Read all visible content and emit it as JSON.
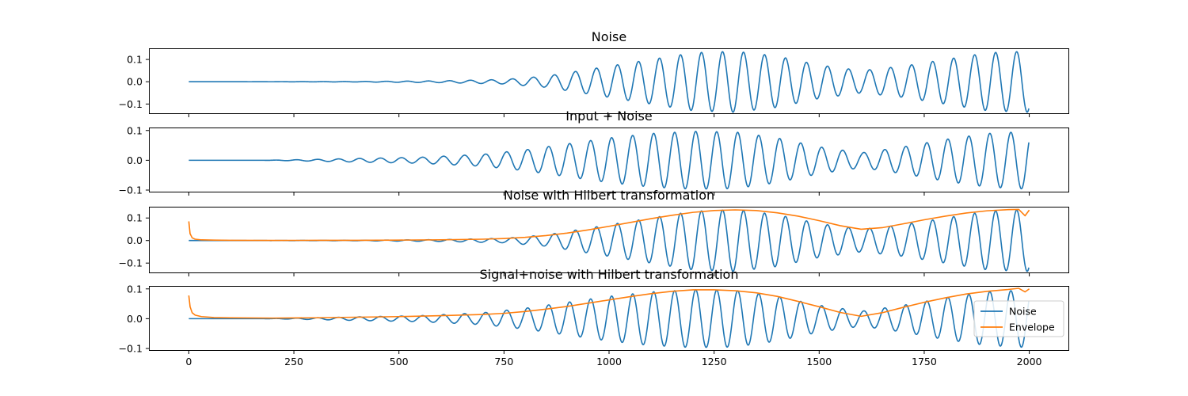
{
  "chart_data": {
    "type": "line",
    "x_domain": [
      -95,
      2095
    ],
    "x_ticks": [
      0,
      250,
      500,
      750,
      1000,
      1250,
      1500,
      1750,
      2000
    ],
    "x_tick_labels": [
      "0",
      "250",
      "500",
      "750",
      "1000",
      "1250",
      "1500",
      "1750",
      "2000"
    ],
    "colors": {
      "signal": "#1f77b4",
      "envelope": "#ff7f0e"
    },
    "legend": {
      "placement": "lower-right",
      "entries": [
        {
          "label": "Noise",
          "color": "#1f77b4"
        },
        {
          "label": "Envelope",
          "color": "#ff7f0e"
        }
      ]
    },
    "panels": [
      {
        "title": "Noise",
        "ylim": [
          -0.145,
          0.15
        ],
        "y_ticks": [
          -0.1,
          0.0,
          0.1
        ],
        "y_tick_labels": [
          "−0.1",
          "0.0",
          "0.1"
        ],
        "show_x_tick_labels": false,
        "series": [
          {
            "name": "Noise",
            "color": "#1f77b4",
            "cycles_per_sample": 0.02,
            "amplitude_envelope": [
              [
                0,
                0
              ],
              [
                200,
                0.0002
              ],
              [
                400,
                0.001
              ],
              [
                600,
                0.004
              ],
              [
                750,
                0.01
              ],
              [
                850,
                0.025
              ],
              [
                1000,
                0.07
              ],
              [
                1100,
                0.1
              ],
              [
                1200,
                0.13
              ],
              [
                1300,
                0.137
              ],
              [
                1400,
                0.115
              ],
              [
                1500,
                0.075
              ],
              [
                1600,
                0.05
              ],
              [
                1700,
                0.07
              ],
              [
                1800,
                0.1
              ],
              [
                1900,
                0.13
              ],
              [
                2000,
                0.137
              ]
            ],
            "end_value": -0.12
          }
        ]
      },
      {
        "title": "Input + Noise",
        "ylim": [
          -0.108,
          0.11
        ],
        "y_ticks": [
          -0.1,
          0.0,
          0.1
        ],
        "y_tick_labels": [
          "−0.1",
          "0.0",
          "0.1"
        ],
        "show_x_tick_labels": false,
        "series": [
          {
            "name": "Input + Noise",
            "color": "#1f77b4",
            "cycles_per_sample": 0.02,
            "amplitude_envelope": [
              [
                0,
                0
              ],
              [
                180,
                0
              ],
              [
                300,
                0.003
              ],
              [
                400,
                0.006
              ],
              [
                550,
                0.01
              ],
              [
                700,
                0.02
              ],
              [
                800,
                0.035
              ],
              [
                900,
                0.055
              ],
              [
                1000,
                0.075
              ],
              [
                1100,
                0.09
              ],
              [
                1200,
                0.097
              ],
              [
                1300,
                0.095
              ],
              [
                1400,
                0.075
              ],
              [
                1500,
                0.045
              ],
              [
                1600,
                0.025
              ],
              [
                1700,
                0.045
              ],
              [
                1800,
                0.07
              ],
              [
                1900,
                0.09
              ],
              [
                2000,
                0.097
              ]
            ],
            "end_value": 0.06
          }
        ]
      },
      {
        "title": "Noise with Hilbert transformation",
        "ylim": [
          -0.145,
          0.15
        ],
        "y_ticks": [
          -0.1,
          0.0,
          0.1
        ],
        "y_tick_labels": [
          "−0.1",
          "0.0",
          "0.1"
        ],
        "show_x_tick_labels": false,
        "series": [
          {
            "name": "Noise",
            "color": "#1f77b4",
            "cycles_per_sample": 0.02,
            "amplitude_envelope": [
              [
                0,
                0
              ],
              [
                200,
                0.0002
              ],
              [
                400,
                0.001
              ],
              [
                600,
                0.004
              ],
              [
                750,
                0.01
              ],
              [
                850,
                0.025
              ],
              [
                1000,
                0.07
              ],
              [
                1100,
                0.1
              ],
              [
                1200,
                0.13
              ],
              [
                1300,
                0.137
              ],
              [
                1400,
                0.115
              ],
              [
                1500,
                0.075
              ],
              [
                1600,
                0.05
              ],
              [
                1700,
                0.07
              ],
              [
                1800,
                0.1
              ],
              [
                1900,
                0.13
              ],
              [
                2000,
                0.137
              ]
            ],
            "end_value": -0.12
          },
          {
            "name": "Envelope",
            "color": "#ff7f0e",
            "x": [
              0,
              3,
              8,
              15,
              30,
              60,
              100,
              200,
              300,
              400,
              500,
              600,
              700,
              750,
              800,
              850,
              900,
              950,
              1000,
              1050,
              1100,
              1150,
              1200,
              1250,
              1300,
              1350,
              1400,
              1450,
              1500,
              1550,
              1600,
              1650,
              1700,
              1750,
              1800,
              1850,
              1900,
              1950,
              1975,
              1990,
              2000
            ],
            "y": [
              0.085,
              0.03,
              0.012,
              0.006,
              0.003,
              0.002,
              0.001,
              0.0005,
              0.0008,
              0.001,
              0.002,
              0.003,
              0.006,
              0.009,
              0.014,
              0.022,
              0.033,
              0.047,
              0.063,
              0.08,
              0.097,
              0.112,
              0.125,
              0.133,
              0.136,
              0.133,
              0.123,
              0.108,
              0.088,
              0.066,
              0.05,
              0.057,
              0.074,
              0.092,
              0.108,
              0.122,
              0.132,
              0.137,
              0.138,
              0.11,
              0.135
            ]
          }
        ]
      },
      {
        "title": "Signal+noise with Hilbert transformation",
        "ylim": [
          -0.108,
          0.11
        ],
        "y_ticks": [
          -0.1,
          0.0,
          0.1
        ],
        "y_tick_labels": [
          "−0.1",
          "0.0",
          "0.1"
        ],
        "show_x_tick_labels": true,
        "show_legend": true,
        "series": [
          {
            "name": "Noise",
            "color": "#1f77b4",
            "cycles_per_sample": 0.02,
            "amplitude_envelope": [
              [
                0,
                0
              ],
              [
                180,
                0
              ],
              [
                300,
                0.003
              ],
              [
                400,
                0.006
              ],
              [
                550,
                0.01
              ],
              [
                700,
                0.02
              ],
              [
                800,
                0.035
              ],
              [
                900,
                0.055
              ],
              [
                1000,
                0.075
              ],
              [
                1100,
                0.09
              ],
              [
                1200,
                0.097
              ],
              [
                1300,
                0.095
              ],
              [
                1400,
                0.075
              ],
              [
                1500,
                0.045
              ],
              [
                1600,
                0.025
              ],
              [
                1700,
                0.045
              ],
              [
                1800,
                0.07
              ],
              [
                1900,
                0.09
              ],
              [
                2000,
                0.097
              ]
            ],
            "end_value": 0.06
          },
          {
            "name": "Envelope",
            "color": "#ff7f0e",
            "x": [
              0,
              3,
              8,
              15,
              30,
              60,
              100,
              200,
              300,
              400,
              500,
              600,
              700,
              750,
              800,
              850,
              900,
              950,
              1000,
              1050,
              1100,
              1150,
              1200,
              1250,
              1300,
              1350,
              1400,
              1450,
              1500,
              1550,
              1600,
              1650,
              1700,
              1750,
              1800,
              1850,
              1900,
              1950,
              1975,
              1990,
              2000
            ],
            "y": [
              0.078,
              0.04,
              0.02,
              0.012,
              0.007,
              0.004,
              0.003,
              0.002,
              0.003,
              0.005,
              0.007,
              0.01,
              0.014,
              0.018,
              0.024,
              0.032,
              0.041,
              0.052,
              0.063,
              0.074,
              0.084,
              0.092,
              0.097,
              0.097,
              0.094,
              0.087,
              0.075,
              0.058,
              0.04,
              0.021,
              0.008,
              0.02,
              0.038,
              0.055,
              0.07,
              0.083,
              0.092,
              0.098,
              0.102,
              0.09,
              0.1
            ]
          }
        ]
      }
    ]
  }
}
